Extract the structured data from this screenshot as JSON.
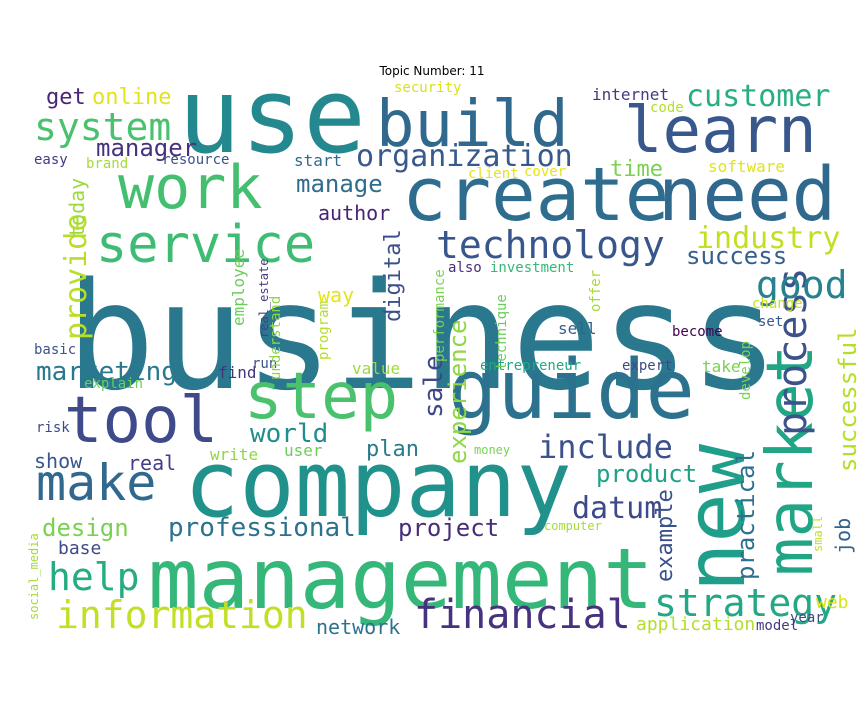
{
  "title": "Topic Number: 11",
  "words": [
    {
      "text": "business",
      "color": "#2a788e"
    },
    {
      "text": "use",
      "color": "#23898e"
    },
    {
      "text": "management",
      "color": "#35b779"
    },
    {
      "text": "company",
      "color": "#21918c"
    },
    {
      "text": "guide",
      "color": "#2c728e"
    },
    {
      "text": "create",
      "color": "#2e6d8e"
    },
    {
      "text": "need",
      "color": "#31688e"
    },
    {
      "text": "build",
      "color": "#31688e"
    },
    {
      "text": "learn",
      "color": "#38588c"
    },
    {
      "text": "work",
      "color": "#44bf70"
    },
    {
      "text": "tool",
      "color": "#3e4a89"
    },
    {
      "text": "step",
      "color": "#4ac16d"
    },
    {
      "text": "new",
      "color": "#1f9e89"
    },
    {
      "text": "market",
      "color": "#21a685"
    },
    {
      "text": "service",
      "color": "#3fbc73"
    },
    {
      "text": "make",
      "color": "#31688e"
    },
    {
      "text": "technology",
      "color": "#39568c"
    },
    {
      "text": "financial",
      "color": "#46327e"
    },
    {
      "text": "information",
      "color": "#c2df23"
    },
    {
      "text": "help",
      "color": "#25ac82"
    },
    {
      "text": "strategy",
      "color": "#22a884"
    },
    {
      "text": "process",
      "color": "#3b528b"
    },
    {
      "text": "system",
      "color": "#4ac16d"
    },
    {
      "text": "organization",
      "color": "#38598c"
    },
    {
      "text": "customer",
      "color": "#29af7f"
    },
    {
      "text": "good",
      "color": "#26828e"
    },
    {
      "text": "industry",
      "color": "#c2df23"
    },
    {
      "text": "provide",
      "color": "#b8de29"
    },
    {
      "text": "include",
      "color": "#3b528b"
    },
    {
      "text": "datum",
      "color": "#3e4989"
    },
    {
      "text": "professional",
      "color": "#2c728e"
    },
    {
      "text": "marketing",
      "color": "#2a788e"
    },
    {
      "text": "world",
      "color": "#228d8d"
    },
    {
      "text": "design",
      "color": "#7ad151"
    },
    {
      "text": "sale",
      "color": "#3f4788"
    },
    {
      "text": "success",
      "color": "#355f8d"
    },
    {
      "text": "project",
      "color": "#472d7b"
    },
    {
      "text": "product",
      "color": "#1fa187"
    },
    {
      "text": "manage",
      "color": "#2f6c8e"
    },
    {
      "text": "manager",
      "color": "#46337e"
    },
    {
      "text": "experience",
      "color": "#8fd744"
    },
    {
      "text": "practical",
      "color": "#2d708e"
    },
    {
      "text": "example",
      "color": "#3b518b"
    },
    {
      "text": "successful",
      "color": "#b5de2b"
    },
    {
      "text": "network",
      "color": "#2c728e"
    },
    {
      "text": "application",
      "color": "#b5de2b"
    },
    {
      "text": "author",
      "color": "#482374"
    },
    {
      "text": "plan",
      "color": "#287c8e"
    },
    {
      "text": "job",
      "color": "#33638d"
    },
    {
      "text": "online",
      "color": "#e1e41d"
    },
    {
      "text": "get",
      "color": "#482576"
    },
    {
      "text": "time",
      "color": "#7ad151"
    },
    {
      "text": "today",
      "color": "#9bd93c"
    },
    {
      "text": "way",
      "color": "#e5e419"
    },
    {
      "text": "digital",
      "color": "#3c4f8a"
    },
    {
      "text": "real",
      "color": "#433e85"
    },
    {
      "text": "show",
      "color": "#39558c"
    },
    {
      "text": "base",
      "color": "#3e4a89"
    },
    {
      "text": "web",
      "color": "#d8e219"
    },
    {
      "text": "internet",
      "color": "#443983"
    },
    {
      "text": "software",
      "color": "#e1e41d"
    },
    {
      "text": "sell",
      "color": "#34608d"
    },
    {
      "text": "take",
      "color": "#7ad151"
    },
    {
      "text": "value",
      "color": "#9bd93c"
    },
    {
      "text": "write",
      "color": "#8fd744"
    },
    {
      "text": "find",
      "color": "#46337e"
    },
    {
      "text": "user",
      "color": "#6ccd5a"
    },
    {
      "text": "run",
      "color": "#3b528b"
    },
    {
      "text": "start",
      "color": "#2f6b8e"
    },
    {
      "text": "entrepreneur",
      "color": "#22a884"
    },
    {
      "text": "expert",
      "color": "#3e4989"
    },
    {
      "text": "develop",
      "color": "#7ad151"
    },
    {
      "text": "set",
      "color": "#38598c"
    },
    {
      "text": "become",
      "color": "#440154"
    },
    {
      "text": "change",
      "color": "#c8e020"
    },
    {
      "text": "offer",
      "color": "#a5db36"
    },
    {
      "text": "investment",
      "color": "#35b779"
    },
    {
      "text": "technique",
      "color": "#6ccd5a"
    },
    {
      "text": "performance",
      "color": "#7ad151"
    },
    {
      "text": "program",
      "color": "#b5de2b"
    },
    {
      "text": "understand",
      "color": "#8fd744"
    },
    {
      "text": "real_estate",
      "color": "#433e85"
    },
    {
      "text": "employee",
      "color": "#6ccd5a"
    },
    {
      "text": "explain",
      "color": "#6ccd5a"
    },
    {
      "text": "basic",
      "color": "#3b528b"
    },
    {
      "text": "risk",
      "color": "#3e4a89"
    },
    {
      "text": "money",
      "color": "#7ad151"
    },
    {
      "text": "computer",
      "color": "#a5db36"
    },
    {
      "text": "small",
      "color": "#c2df23"
    },
    {
      "text": "year",
      "color": "#3e4a89"
    },
    {
      "text": "model",
      "color": "#443983"
    },
    {
      "text": "social_media",
      "color": "#a5db36"
    },
    {
      "text": "security",
      "color": "#d8e219"
    },
    {
      "text": "code",
      "color": "#b5de2b"
    },
    {
      "text": "client",
      "color": "#e1e41d"
    },
    {
      "text": "cover",
      "color": "#e5e419"
    },
    {
      "text": "easy",
      "color": "#443983"
    },
    {
      "text": "brand",
      "color": "#a5db36"
    },
    {
      "text": "resource",
      "color": "#3b528b"
    },
    {
      "text": "also",
      "color": "#472d7b"
    }
  ]
}
